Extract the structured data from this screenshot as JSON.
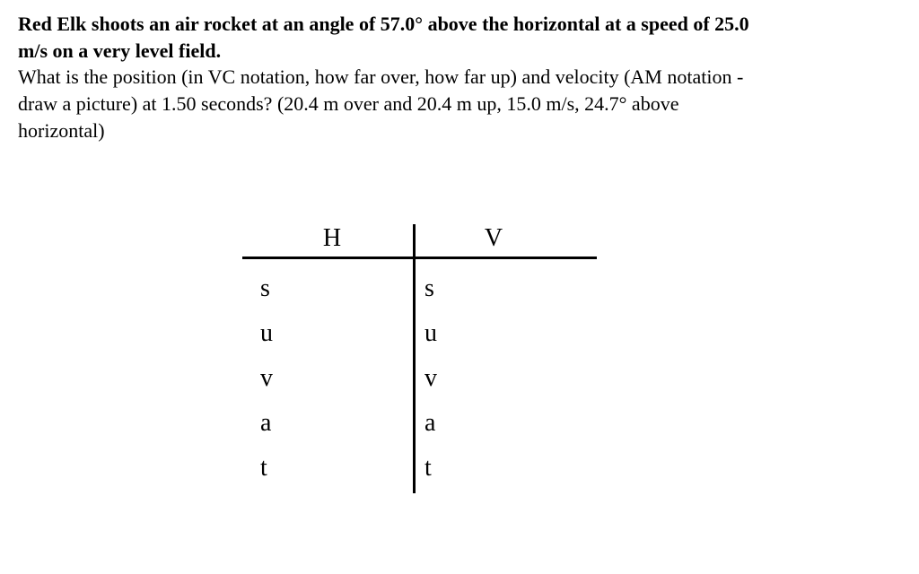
{
  "problem": {
    "bold_line1": "Red Elk shoots an air rocket at an angle of 57.0° above the horizontal at a speed of 25.0",
    "bold_line2": "m/s on a very level field.",
    "question_line1": "What is the position (in VC notation, how far over, how far up) and velocity (AM notation -",
    "question_line2": "draw a picture) at 1.50 seconds? (20.4 m over and 20.4 m up, 15.0 m/s, 24.7° above",
    "question_line3": "horizontal)"
  },
  "table": {
    "header_left": "H",
    "header_right": "V",
    "rows": [
      "s",
      "u",
      "v",
      "a",
      "t"
    ],
    "text_color": "#000000",
    "line_color": "#000000",
    "font_size": 28,
    "background_color": "#ffffff"
  }
}
